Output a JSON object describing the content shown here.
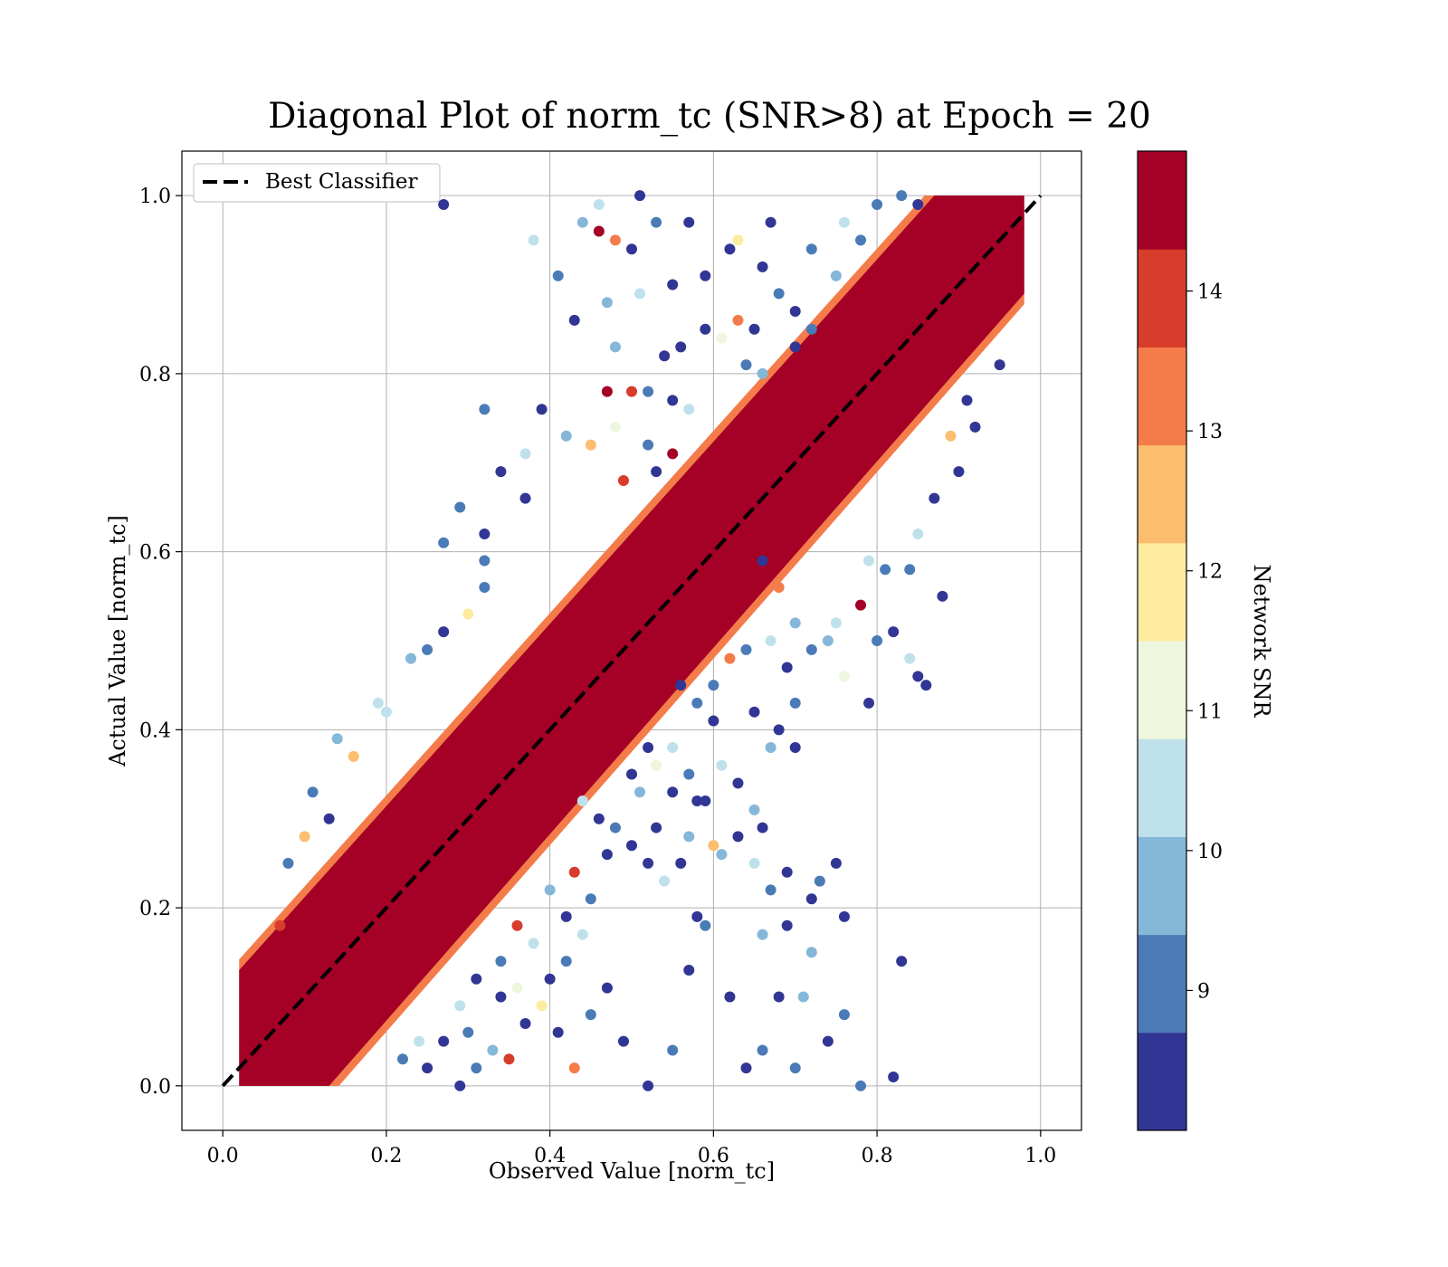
{
  "chart_data": {
    "type": "scatter",
    "title": "Diagonal Plot of norm_tc (SNR>8) at Epoch = 20",
    "xlabel": "Observed Value [norm_tc]",
    "ylabel": "Actual Value [norm_tc]",
    "xlim": [
      -0.05,
      1.05
    ],
    "ylim": [
      -0.05,
      1.05
    ],
    "xticks": [
      "0.0",
      "0.2",
      "0.4",
      "0.6",
      "0.8",
      "1.0"
    ],
    "yticks": [
      "0.0",
      "0.2",
      "0.4",
      "0.6",
      "0.8",
      "1.0"
    ],
    "grid": true,
    "legend": {
      "placement": "upper-left",
      "entries": [
        {
          "label": "Best Classifier",
          "style": "black dashed line"
        }
      ]
    },
    "reference_line": {
      "label": "Best Classifier",
      "x": [
        0.0,
        1.0
      ],
      "y": [
        0.0,
        1.0
      ],
      "color": "#000000",
      "style": "dashed"
    },
    "colorbar": {
      "label": "Network SNR",
      "range": [
        8.0,
        15.0
      ],
      "ticks": [
        "9",
        "10",
        "11",
        "12",
        "13",
        "14"
      ],
      "bins": [
        {
          "from": 8.0,
          "to": 8.7,
          "color": "#313695"
        },
        {
          "from": 8.7,
          "to": 9.4,
          "color": "#4a7bb7"
        },
        {
          "from": 9.4,
          "to": 10.1,
          "color": "#85b7d9"
        },
        {
          "from": 10.1,
          "to": 10.8,
          "color": "#bfe1ec"
        },
        {
          "from": 10.8,
          "to": 11.5,
          "color": "#eef6dd"
        },
        {
          "from": 11.5,
          "to": 12.2,
          "color": "#feeba0"
        },
        {
          "from": 12.2,
          "to": 12.9,
          "color": "#fcbd6e"
        },
        {
          "from": 12.9,
          "to": 13.6,
          "color": "#f47c4a"
        },
        {
          "from": 13.6,
          "to": 14.3,
          "color": "#d73c2c"
        },
        {
          "from": 14.3,
          "to": 15.0,
          "color": "#a50026"
        }
      ]
    },
    "dense_band": {
      "x_range": [
        0.02,
        0.98
      ],
      "half_width_y": 0.09,
      "color": "#a50026",
      "edge_color": "#f47c4a"
    },
    "points": [
      {
        "x": 0.27,
        "y": 0.99,
        "snr": 8.2
      },
      {
        "x": 0.38,
        "y": 0.95,
        "snr": 10.3
      },
      {
        "x": 0.44,
        "y": 0.97,
        "snr": 9.7
      },
      {
        "x": 0.46,
        "y": 0.99,
        "snr": 10.3
      },
      {
        "x": 0.51,
        "y": 1.0,
        "snr": 8.2
      },
      {
        "x": 0.5,
        "y": 0.94,
        "snr": 8.2
      },
      {
        "x": 0.48,
        "y": 0.95,
        "snr": 13.3
      },
      {
        "x": 0.46,
        "y": 0.96,
        "snr": 14.7
      },
      {
        "x": 0.53,
        "y": 0.97,
        "snr": 9.1
      },
      {
        "x": 0.57,
        "y": 0.97,
        "snr": 8.2
      },
      {
        "x": 0.41,
        "y": 0.91,
        "snr": 9.1
      },
      {
        "x": 0.43,
        "y": 0.86,
        "snr": 8.2
      },
      {
        "x": 0.47,
        "y": 0.88,
        "snr": 9.7
      },
      {
        "x": 0.51,
        "y": 0.89,
        "snr": 10.3
      },
      {
        "x": 0.55,
        "y": 0.9,
        "snr": 8.2
      },
      {
        "x": 0.59,
        "y": 0.91,
        "snr": 8.2
      },
      {
        "x": 0.62,
        "y": 0.94,
        "snr": 8.2
      },
      {
        "x": 0.63,
        "y": 0.95,
        "snr": 11.8
      },
      {
        "x": 0.66,
        "y": 0.92,
        "snr": 8.2
      },
      {
        "x": 0.67,
        "y": 0.97,
        "snr": 8.2
      },
      {
        "x": 0.68,
        "y": 0.89,
        "snr": 9.1
      },
      {
        "x": 0.72,
        "y": 0.94,
        "snr": 9.1
      },
      {
        "x": 0.7,
        "y": 0.87,
        "snr": 8.2
      },
      {
        "x": 0.65,
        "y": 0.85,
        "snr": 8.2
      },
      {
        "x": 0.59,
        "y": 0.85,
        "snr": 8.2
      },
      {
        "x": 0.48,
        "y": 0.83,
        "snr": 9.7
      },
      {
        "x": 0.47,
        "y": 0.78,
        "snr": 14.7
      },
      {
        "x": 0.5,
        "y": 0.78,
        "snr": 14.0
      },
      {
        "x": 0.48,
        "y": 0.74,
        "snr": 11.1
      },
      {
        "x": 0.49,
        "y": 0.68,
        "snr": 14.0
      },
      {
        "x": 0.45,
        "y": 0.72,
        "snr": 12.6
      },
      {
        "x": 0.42,
        "y": 0.73,
        "snr": 9.7
      },
      {
        "x": 0.39,
        "y": 0.76,
        "snr": 8.2
      },
      {
        "x": 0.32,
        "y": 0.76,
        "snr": 9.1
      },
      {
        "x": 0.34,
        "y": 0.69,
        "snr": 8.2
      },
      {
        "x": 0.37,
        "y": 0.71,
        "snr": 10.3
      },
      {
        "x": 0.37,
        "y": 0.66,
        "snr": 8.2
      },
      {
        "x": 0.29,
        "y": 0.65,
        "snr": 9.1
      },
      {
        "x": 0.32,
        "y": 0.62,
        "snr": 8.2
      },
      {
        "x": 0.27,
        "y": 0.61,
        "snr": 9.1
      },
      {
        "x": 0.32,
        "y": 0.59,
        "snr": 9.1
      },
      {
        "x": 0.32,
        "y": 0.56,
        "snr": 9.1
      },
      {
        "x": 0.27,
        "y": 0.51,
        "snr": 8.2
      },
      {
        "x": 0.25,
        "y": 0.49,
        "snr": 9.1
      },
      {
        "x": 0.23,
        "y": 0.48,
        "snr": 9.7
      },
      {
        "x": 0.3,
        "y": 0.53,
        "snr": 11.8
      },
      {
        "x": 0.19,
        "y": 0.43,
        "snr": 10.3
      },
      {
        "x": 0.2,
        "y": 0.42,
        "snr": 10.3
      },
      {
        "x": 0.14,
        "y": 0.39,
        "snr": 9.7
      },
      {
        "x": 0.16,
        "y": 0.37,
        "snr": 12.6
      },
      {
        "x": 0.11,
        "y": 0.33,
        "snr": 9.1
      },
      {
        "x": 0.13,
        "y": 0.3,
        "snr": 8.2
      },
      {
        "x": 0.1,
        "y": 0.28,
        "snr": 12.6
      },
      {
        "x": 0.08,
        "y": 0.25,
        "snr": 9.1
      },
      {
        "x": 0.07,
        "y": 0.18,
        "snr": 14.0
      },
      {
        "x": 0.52,
        "y": 0.78,
        "snr": 9.1
      },
      {
        "x": 0.54,
        "y": 0.82,
        "snr": 8.2
      },
      {
        "x": 0.56,
        "y": 0.83,
        "snr": 8.2
      },
      {
        "x": 0.55,
        "y": 0.77,
        "snr": 8.2
      },
      {
        "x": 0.57,
        "y": 0.76,
        "snr": 10.3
      },
      {
        "x": 0.52,
        "y": 0.72,
        "snr": 9.1
      },
      {
        "x": 0.55,
        "y": 0.71,
        "snr": 14.7
      },
      {
        "x": 0.53,
        "y": 0.69,
        "snr": 8.2
      },
      {
        "x": 0.61,
        "y": 0.84,
        "snr": 11.1
      },
      {
        "x": 0.63,
        "y": 0.86,
        "snr": 13.3
      },
      {
        "x": 0.64,
        "y": 0.81,
        "snr": 9.1
      },
      {
        "x": 0.66,
        "y": 0.8,
        "snr": 9.7
      },
      {
        "x": 0.7,
        "y": 0.83,
        "snr": 8.2
      },
      {
        "x": 0.72,
        "y": 0.85,
        "snr": 9.1
      },
      {
        "x": 0.75,
        "y": 0.91,
        "snr": 9.7
      },
      {
        "x": 0.78,
        "y": 0.95,
        "snr": 9.1
      },
      {
        "x": 0.8,
        "y": 0.99,
        "snr": 9.1
      },
      {
        "x": 0.83,
        "y": 1.0,
        "snr": 9.1
      },
      {
        "x": 0.85,
        "y": 0.99,
        "snr": 8.2
      },
      {
        "x": 0.76,
        "y": 0.97,
        "snr": 10.3
      },
      {
        "x": 0.66,
        "y": 0.59,
        "snr": 8.2
      },
      {
        "x": 0.68,
        "y": 0.56,
        "snr": 13.3
      },
      {
        "x": 0.7,
        "y": 0.52,
        "snr": 9.7
      },
      {
        "x": 0.72,
        "y": 0.49,
        "snr": 9.1
      },
      {
        "x": 0.74,
        "y": 0.5,
        "snr": 9.7
      },
      {
        "x": 0.76,
        "y": 0.46,
        "snr": 11.1
      },
      {
        "x": 0.8,
        "y": 0.5,
        "snr": 9.1
      },
      {
        "x": 0.82,
        "y": 0.51,
        "snr": 8.2
      },
      {
        "x": 0.84,
        "y": 0.48,
        "snr": 10.3
      },
      {
        "x": 0.85,
        "y": 0.46,
        "snr": 8.2
      },
      {
        "x": 0.86,
        "y": 0.45,
        "snr": 8.2
      },
      {
        "x": 0.88,
        "y": 0.55,
        "snr": 8.2
      },
      {
        "x": 0.79,
        "y": 0.43,
        "snr": 8.2
      },
      {
        "x": 0.75,
        "y": 0.52,
        "snr": 10.3
      },
      {
        "x": 0.78,
        "y": 0.54,
        "snr": 14.7
      },
      {
        "x": 0.79,
        "y": 0.59,
        "snr": 10.3
      },
      {
        "x": 0.81,
        "y": 0.58,
        "snr": 9.1
      },
      {
        "x": 0.84,
        "y": 0.58,
        "snr": 9.1
      },
      {
        "x": 0.85,
        "y": 0.62,
        "snr": 10.3
      },
      {
        "x": 0.9,
        "y": 0.69,
        "snr": 8.2
      },
      {
        "x": 0.92,
        "y": 0.74,
        "snr": 8.2
      },
      {
        "x": 0.89,
        "y": 0.73,
        "snr": 12.6
      },
      {
        "x": 0.87,
        "y": 0.66,
        "snr": 8.2
      },
      {
        "x": 0.91,
        "y": 0.77,
        "snr": 8.2
      },
      {
        "x": 0.95,
        "y": 0.81,
        "snr": 8.2
      },
      {
        "x": 0.56,
        "y": 0.45,
        "snr": 8.2
      },
      {
        "x": 0.58,
        "y": 0.43,
        "snr": 9.1
      },
      {
        "x": 0.6,
        "y": 0.41,
        "snr": 8.2
      },
      {
        "x": 0.61,
        "y": 0.36,
        "snr": 10.3
      },
      {
        "x": 0.63,
        "y": 0.34,
        "snr": 8.2
      },
      {
        "x": 0.65,
        "y": 0.31,
        "snr": 9.7
      },
      {
        "x": 0.66,
        "y": 0.29,
        "snr": 8.2
      },
      {
        "x": 0.63,
        "y": 0.28,
        "snr": 8.2
      },
      {
        "x": 0.61,
        "y": 0.26,
        "snr": 9.7
      },
      {
        "x": 0.58,
        "y": 0.32,
        "snr": 8.2
      },
      {
        "x": 0.59,
        "y": 0.32,
        "snr": 8.2
      },
      {
        "x": 0.57,
        "y": 0.28,
        "snr": 9.7
      },
      {
        "x": 0.56,
        "y": 0.25,
        "snr": 8.2
      },
      {
        "x": 0.54,
        "y": 0.23,
        "snr": 10.3
      },
      {
        "x": 0.52,
        "y": 0.25,
        "snr": 8.2
      },
      {
        "x": 0.5,
        "y": 0.27,
        "snr": 8.2
      },
      {
        "x": 0.48,
        "y": 0.29,
        "snr": 9.1
      },
      {
        "x": 0.46,
        "y": 0.3,
        "snr": 8.2
      },
      {
        "x": 0.44,
        "y": 0.32,
        "snr": 10.3
      },
      {
        "x": 0.47,
        "y": 0.26,
        "snr": 8.2
      },
      {
        "x": 0.43,
        "y": 0.24,
        "snr": 14.0
      },
      {
        "x": 0.45,
        "y": 0.21,
        "snr": 9.1
      },
      {
        "x": 0.42,
        "y": 0.19,
        "snr": 8.2
      },
      {
        "x": 0.4,
        "y": 0.22,
        "snr": 9.7
      },
      {
        "x": 0.38,
        "y": 0.16,
        "snr": 10.3
      },
      {
        "x": 0.36,
        "y": 0.18,
        "snr": 14.0
      },
      {
        "x": 0.34,
        "y": 0.14,
        "snr": 9.1
      },
      {
        "x": 0.31,
        "y": 0.12,
        "snr": 8.2
      },
      {
        "x": 0.29,
        "y": 0.09,
        "snr": 10.3
      },
      {
        "x": 0.27,
        "y": 0.05,
        "snr": 8.2
      },
      {
        "x": 0.3,
        "y": 0.06,
        "snr": 9.1
      },
      {
        "x": 0.33,
        "y": 0.04,
        "snr": 9.7
      },
      {
        "x": 0.35,
        "y": 0.03,
        "snr": 14.0
      },
      {
        "x": 0.37,
        "y": 0.07,
        "snr": 8.2
      },
      {
        "x": 0.39,
        "y": 0.09,
        "snr": 11.8
      },
      {
        "x": 0.41,
        "y": 0.06,
        "snr": 8.2
      },
      {
        "x": 0.43,
        "y": 0.02,
        "snr": 13.3
      },
      {
        "x": 0.45,
        "y": 0.08,
        "snr": 9.1
      },
      {
        "x": 0.47,
        "y": 0.11,
        "snr": 8.2
      },
      {
        "x": 0.49,
        "y": 0.05,
        "snr": 8.2
      },
      {
        "x": 0.52,
        "y": 0.0,
        "snr": 8.2
      },
      {
        "x": 0.55,
        "y": 0.04,
        "snr": 9.1
      },
      {
        "x": 0.57,
        "y": 0.13,
        "snr": 8.2
      },
      {
        "x": 0.59,
        "y": 0.18,
        "snr": 9.1
      },
      {
        "x": 0.62,
        "y": 0.1,
        "snr": 8.2
      },
      {
        "x": 0.64,
        "y": 0.02,
        "snr": 8.2
      },
      {
        "x": 0.66,
        "y": 0.04,
        "snr": 9.1
      },
      {
        "x": 0.68,
        "y": 0.1,
        "snr": 8.2
      },
      {
        "x": 0.7,
        "y": 0.02,
        "snr": 9.1
      },
      {
        "x": 0.72,
        "y": 0.15,
        "snr": 9.7
      },
      {
        "x": 0.74,
        "y": 0.05,
        "snr": 8.2
      },
      {
        "x": 0.76,
        "y": 0.08,
        "snr": 9.1
      },
      {
        "x": 0.78,
        "y": 0.0,
        "snr": 9.1
      },
      {
        "x": 0.82,
        "y": 0.01,
        "snr": 8.2
      },
      {
        "x": 0.83,
        "y": 0.14,
        "snr": 8.2
      },
      {
        "x": 0.71,
        "y": 0.1,
        "snr": 9.7
      },
      {
        "x": 0.69,
        "y": 0.18,
        "snr": 8.2
      },
      {
        "x": 0.66,
        "y": 0.17,
        "snr": 9.7
      },
      {
        "x": 0.67,
        "y": 0.22,
        "snr": 9.1
      },
      {
        "x": 0.65,
        "y": 0.25,
        "snr": 10.3
      },
      {
        "x": 0.69,
        "y": 0.24,
        "snr": 8.2
      },
      {
        "x": 0.73,
        "y": 0.23,
        "snr": 9.1
      },
      {
        "x": 0.75,
        "y": 0.25,
        "snr": 8.2
      },
      {
        "x": 0.76,
        "y": 0.19,
        "snr": 8.2
      },
      {
        "x": 0.72,
        "y": 0.21,
        "snr": 8.2
      },
      {
        "x": 0.6,
        "y": 0.27,
        "snr": 12.2
      },
      {
        "x": 0.58,
        "y": 0.19,
        "snr": 8.2
      },
      {
        "x": 0.53,
        "y": 0.29,
        "snr": 8.2
      },
      {
        "x": 0.51,
        "y": 0.33,
        "snr": 9.7
      },
      {
        "x": 0.5,
        "y": 0.35,
        "snr": 8.2
      },
      {
        "x": 0.55,
        "y": 0.33,
        "snr": 8.2
      },
      {
        "x": 0.52,
        "y": 0.38,
        "snr": 8.2
      },
      {
        "x": 0.55,
        "y": 0.38,
        "snr": 10.3
      },
      {
        "x": 0.53,
        "y": 0.36,
        "snr": 11.1
      },
      {
        "x": 0.57,
        "y": 0.35,
        "snr": 9.1
      },
      {
        "x": 0.6,
        "y": 0.45,
        "snr": 9.1
      },
      {
        "x": 0.62,
        "y": 0.48,
        "snr": 13.3
      },
      {
        "x": 0.64,
        "y": 0.49,
        "snr": 9.1
      },
      {
        "x": 0.67,
        "y": 0.5,
        "snr": 10.3
      },
      {
        "x": 0.69,
        "y": 0.47,
        "snr": 8.2
      },
      {
        "x": 0.7,
        "y": 0.43,
        "snr": 9.1
      },
      {
        "x": 0.68,
        "y": 0.4,
        "snr": 8.2
      },
      {
        "x": 0.67,
        "y": 0.38,
        "snr": 9.7
      },
      {
        "x": 0.7,
        "y": 0.38,
        "snr": 8.2
      },
      {
        "x": 0.65,
        "y": 0.42,
        "snr": 8.2
      },
      {
        "x": 0.4,
        "y": 0.12,
        "snr": 8.2
      },
      {
        "x": 0.42,
        "y": 0.14,
        "snr": 9.1
      },
      {
        "x": 0.44,
        "y": 0.17,
        "snr": 10.3
      },
      {
        "x": 0.36,
        "y": 0.11,
        "snr": 11.1
      },
      {
        "x": 0.34,
        "y": 0.1,
        "snr": 8.2
      },
      {
        "x": 0.31,
        "y": 0.02,
        "snr": 9.1
      },
      {
        "x": 0.29,
        "y": 0.0,
        "snr": 8.2
      },
      {
        "x": 0.25,
        "y": 0.02,
        "snr": 8.2
      },
      {
        "x": 0.24,
        "y": 0.05,
        "snr": 10.3
      },
      {
        "x": 0.22,
        "y": 0.03,
        "snr": 9.1
      }
    ]
  }
}
